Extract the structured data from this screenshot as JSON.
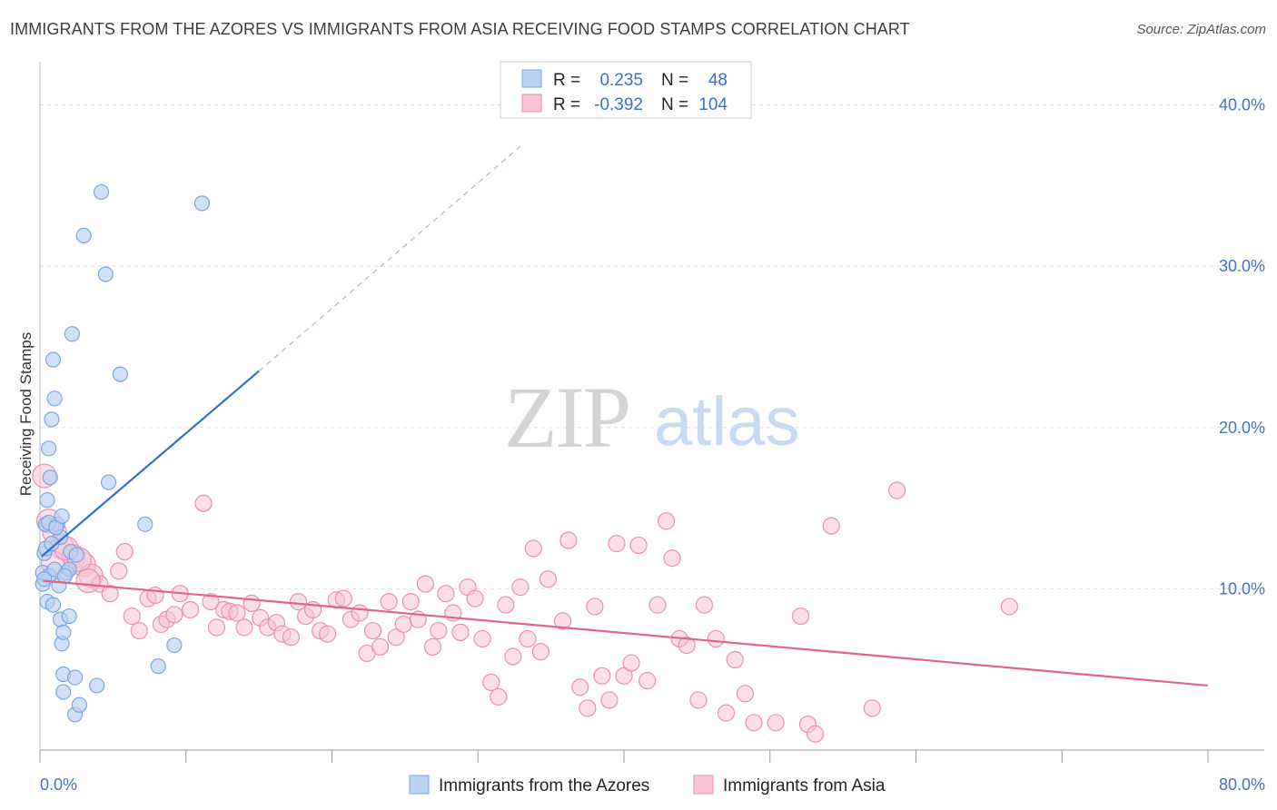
{
  "chart_data": {
    "type": "scatter",
    "title": "IMMIGRANTS FROM THE AZORES VS IMMIGRANTS FROM ASIA RECEIVING FOOD STAMPS CORRELATION CHART",
    "source": "Source: ZipAtlas.com",
    "ylabel": "Receiving Food Stamps",
    "xlabel": "",
    "xlim": [
      0,
      80
    ],
    "ylim": [
      0,
      42
    ],
    "x_tick_labels": [
      "0.0%",
      "80.0%"
    ],
    "y_ticks": [
      10,
      20,
      30,
      40
    ],
    "y_tick_labels": [
      "10.0%",
      "20.0%",
      "30.0%",
      "40.0%"
    ],
    "watermark": {
      "zip": "ZIP",
      "atlas": "atlas"
    },
    "legend_stats": [
      {
        "r_label": "R =",
        "r_value": "0.235",
        "n_label": "N =",
        "n_value": "48"
      },
      {
        "r_label": "R =",
        "r_value": "-0.392",
        "n_label": "N =",
        "n_value": "104"
      }
    ],
    "series": [
      {
        "name": "Immigrants from the Azores",
        "color": "#7aa6e0",
        "fill": "#b8d0f2",
        "line_color": "#2f6fd1",
        "trend": {
          "x0": 0.1,
          "y0": 12.0,
          "x1": 15.0,
          "y1": 23.5,
          "dash_x1": 33.0,
          "dash_y1": 37.5
        },
        "points": [
          [
            0.2,
            10.3
          ],
          [
            0.2,
            11.0
          ],
          [
            0.3,
            12.2
          ],
          [
            0.4,
            14.0
          ],
          [
            0.5,
            15.5
          ],
          [
            0.5,
            9.2
          ],
          [
            0.6,
            10.8
          ],
          [
            0.6,
            18.7
          ],
          [
            0.7,
            16.9
          ],
          [
            0.8,
            20.5
          ],
          [
            0.9,
            24.2
          ],
          [
            1.0,
            21.8
          ],
          [
            1.2,
            14.0
          ],
          [
            1.3,
            10.2
          ],
          [
            1.4,
            8.1
          ],
          [
            1.4,
            13.2
          ],
          [
            1.5,
            6.6
          ],
          [
            1.6,
            7.3
          ],
          [
            1.6,
            4.7
          ],
          [
            1.6,
            3.6
          ],
          [
            1.8,
            11.0
          ],
          [
            2.0,
            8.3
          ],
          [
            2.0,
            11.2
          ],
          [
            2.2,
            25.8
          ],
          [
            2.4,
            2.2
          ],
          [
            2.4,
            4.5
          ],
          [
            2.7,
            2.8
          ],
          [
            3.0,
            31.9
          ],
          [
            3.9,
            4.0
          ],
          [
            4.2,
            34.6
          ],
          [
            4.5,
            29.5
          ],
          [
            4.7,
            16.6
          ],
          [
            5.5,
            23.3
          ],
          [
            7.2,
            14.0
          ],
          [
            8.1,
            5.2
          ],
          [
            9.2,
            6.5
          ],
          [
            11.1,
            33.9
          ],
          [
            0.3,
            10.6
          ],
          [
            0.4,
            12.5
          ],
          [
            0.6,
            14.1
          ],
          [
            0.8,
            12.8
          ],
          [
            1.0,
            11.2
          ],
          [
            1.1,
            13.8
          ],
          [
            1.5,
            14.5
          ],
          [
            2.1,
            12.3
          ],
          [
            2.5,
            12.1
          ],
          [
            0.9,
            9.0
          ],
          [
            1.7,
            10.8
          ]
        ]
      },
      {
        "name": "Immigrants from Asia",
        "color": "#e98fb0",
        "fill": "#f7c3d6",
        "line_color": "#e0648e",
        "trend": {
          "x0": 0.2,
          "y0": 10.5,
          "x1": 80.0,
          "y1": 4.0
        },
        "points": [
          [
            0.3,
            17.0
          ],
          [
            0.6,
            14.2
          ],
          [
            1.0,
            13.5
          ],
          [
            1.5,
            12.6
          ],
          [
            2.3,
            12.0
          ],
          [
            3.0,
            11.5
          ],
          [
            3.5,
            10.8
          ],
          [
            4.1,
            10.3
          ],
          [
            4.8,
            9.7
          ],
          [
            5.4,
            11.1
          ],
          [
            5.8,
            12.3
          ],
          [
            6.3,
            8.3
          ],
          [
            6.8,
            7.4
          ],
          [
            7.4,
            9.4
          ],
          [
            7.9,
            9.6
          ],
          [
            8.3,
            7.8
          ],
          [
            8.7,
            8.1
          ],
          [
            9.2,
            8.4
          ],
          [
            9.6,
            9.7
          ],
          [
            10.3,
            8.7
          ],
          [
            11.2,
            15.3
          ],
          [
            11.7,
            9.2
          ],
          [
            12.1,
            7.6
          ],
          [
            12.6,
            8.7
          ],
          [
            13.0,
            8.6
          ],
          [
            13.5,
            8.5
          ],
          [
            14.0,
            7.6
          ],
          [
            14.5,
            9.1
          ],
          [
            15.1,
            8.2
          ],
          [
            15.6,
            7.6
          ],
          [
            16.2,
            7.9
          ],
          [
            16.6,
            7.2
          ],
          [
            17.2,
            7.0
          ],
          [
            17.7,
            9.2
          ],
          [
            18.2,
            8.3
          ],
          [
            18.7,
            8.7
          ],
          [
            19.2,
            7.4
          ],
          [
            19.7,
            7.2
          ],
          [
            20.3,
            9.3
          ],
          [
            20.8,
            9.4
          ],
          [
            21.3,
            8.1
          ],
          [
            21.9,
            8.5
          ],
          [
            22.4,
            6.0
          ],
          [
            22.8,
            7.4
          ],
          [
            23.3,
            6.4
          ],
          [
            23.9,
            9.2
          ],
          [
            24.4,
            7.0
          ],
          [
            24.9,
            7.8
          ],
          [
            25.4,
            9.2
          ],
          [
            25.9,
            8.1
          ],
          [
            26.4,
            10.3
          ],
          [
            26.9,
            6.4
          ],
          [
            27.3,
            7.4
          ],
          [
            27.8,
            9.7
          ],
          [
            28.3,
            8.5
          ],
          [
            28.8,
            7.3
          ],
          [
            29.3,
            10.1
          ],
          [
            29.8,
            9.4
          ],
          [
            30.3,
            6.9
          ],
          [
            30.9,
            4.2
          ],
          [
            31.4,
            3.3
          ],
          [
            31.9,
            9.0
          ],
          [
            32.4,
            5.8
          ],
          [
            32.9,
            10.1
          ],
          [
            33.4,
            6.9
          ],
          [
            33.8,
            12.5
          ],
          [
            34.3,
            6.1
          ],
          [
            34.8,
            10.6
          ],
          [
            35.8,
            8.0
          ],
          [
            36.2,
            13.0
          ],
          [
            37.0,
            3.9
          ],
          [
            37.5,
            2.6
          ],
          [
            38.0,
            8.9
          ],
          [
            38.5,
            4.6
          ],
          [
            39.0,
            3.1
          ],
          [
            39.5,
            12.8
          ],
          [
            40.0,
            4.6
          ],
          [
            40.5,
            5.4
          ],
          [
            41.0,
            12.7
          ],
          [
            41.6,
            4.3
          ],
          [
            42.3,
            9.0
          ],
          [
            42.9,
            14.2
          ],
          [
            43.3,
            11.9
          ],
          [
            43.8,
            6.9
          ],
          [
            44.3,
            6.5
          ],
          [
            45.1,
            3.1
          ],
          [
            45.5,
            9.0
          ],
          [
            46.3,
            6.9
          ],
          [
            47.0,
            2.3
          ],
          [
            47.6,
            5.6
          ],
          [
            48.3,
            3.5
          ],
          [
            48.9,
            1.7
          ],
          [
            50.4,
            1.7
          ],
          [
            52.1,
            8.3
          ],
          [
            52.6,
            1.6
          ],
          [
            53.1,
            1.0
          ],
          [
            54.2,
            13.9
          ],
          [
            57.0,
            2.6
          ],
          [
            58.7,
            16.1
          ],
          [
            66.4,
            8.9
          ],
          [
            0.9,
            11.6
          ],
          [
            1.8,
            12.5
          ],
          [
            2.7,
            11.8
          ],
          [
            3.3,
            10.5
          ]
        ]
      }
    ]
  },
  "legend": {
    "series1_label": "Immigrants from the Azores",
    "series2_label": "Immigrants from Asia"
  }
}
